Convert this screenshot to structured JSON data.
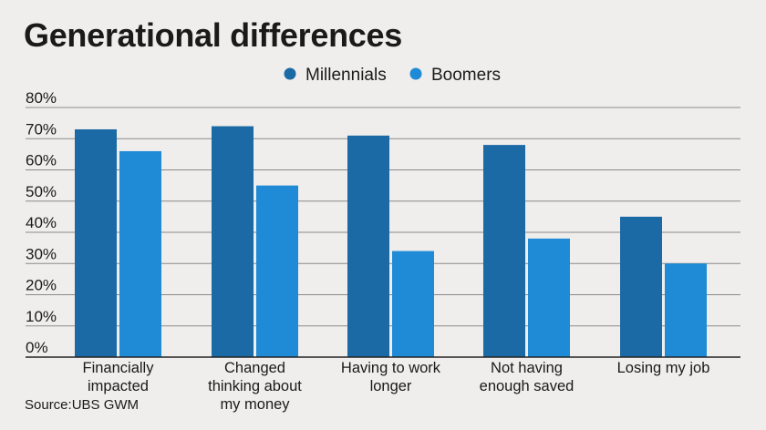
{
  "title": "Generational differences",
  "source": "Source:UBS GWM",
  "colors": {
    "millennials": "#1b6aa5",
    "boomers": "#1f8bd6",
    "grid": "#8a8a8a",
    "axis": "#222222"
  },
  "chart_data": {
    "type": "bar",
    "categories": [
      [
        "Financially",
        "impacted"
      ],
      [
        "Changed",
        "thinking about",
        "my money"
      ],
      [
        "Having to work",
        "longer"
      ],
      [
        "Not having",
        "enough saved"
      ],
      [
        "Losing my job"
      ]
    ],
    "series": [
      {
        "name": "Millennials",
        "values": [
          73,
          74,
          71,
          68,
          45
        ]
      },
      {
        "name": "Boomers",
        "values": [
          66,
          55,
          34,
          38,
          30
        ]
      }
    ],
    "ylim": [
      0,
      80
    ],
    "yticks": [
      "0%",
      "10%",
      "20%",
      "30%",
      "40%",
      "50%",
      "60%",
      "70%",
      "80%"
    ],
    "grid": true,
    "legend": "top-center"
  }
}
